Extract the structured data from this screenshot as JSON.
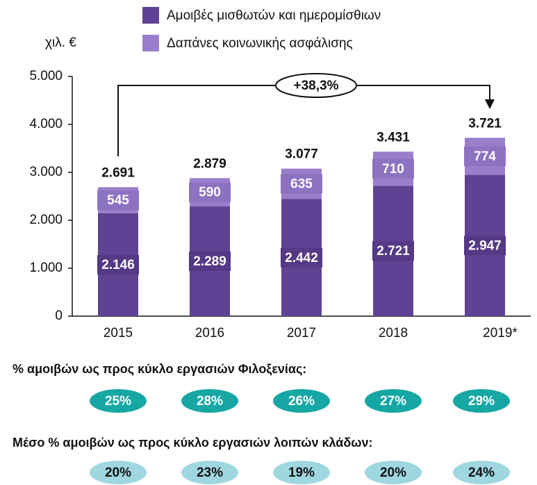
{
  "chart_data": {
    "type": "bar",
    "stacked": true,
    "ylabel": "χιλ. €",
    "categories": [
      "2015",
      "2016",
      "2017",
      "2018",
      "2019*"
    ],
    "series": [
      {
        "name": "Αμοιβές μισθωτών και ημερομίσθιων",
        "color": "#5f4293",
        "values": [
          2146,
          2289,
          2442,
          2721,
          2947
        ],
        "value_labels": [
          "2.146",
          "2.289",
          "2.442",
          "2.721",
          "2.947"
        ]
      },
      {
        "name": "Δαπάνες κοινωνικής ασφάλισης",
        "color": "#9a7ecb",
        "values": [
          545,
          590,
          635,
          710,
          774
        ],
        "value_labels": [
          "545",
          "590",
          "635",
          "710",
          "774"
        ]
      }
    ],
    "totals": {
      "values": [
        2691,
        2879,
        3077,
        3431,
        3721
      ],
      "value_labels": [
        "2.691",
        "2.879",
        "3.077",
        "3.431",
        "3.721"
      ]
    },
    "annotation": "+38,3%",
    "ylim": [
      0,
      5000
    ],
    "yticks": [
      0,
      {
        "value": 1000,
        "label": "1.000"
      },
      {
        "value": 2000,
        "label": "2.000"
      },
      {
        "value": 3000,
        "label": "3.000"
      },
      {
        "value": 4000,
        "label": "4.000"
      },
      {
        "value": 5000,
        "label": "5.000"
      }
    ],
    "grid": false
  },
  "indicators": [
    {
      "title": "% αμοιβών ως προς κύκλο εργασιών Φιλοξενίας:",
      "labels": [
        "25%",
        "28%",
        "26%",
        "27%",
        "29%"
      ],
      "color": "#16a7a4",
      "text_color": "#ffffff"
    },
    {
      "title": "Μέσο % αμοιβών ως προς κύκλο εργασιών λοιπών κλάδων:",
      "labels": [
        "20%",
        "23%",
        "19%",
        "20%",
        "24%"
      ],
      "color": "#9fd7e0",
      "text_color": "#111111"
    }
  ]
}
